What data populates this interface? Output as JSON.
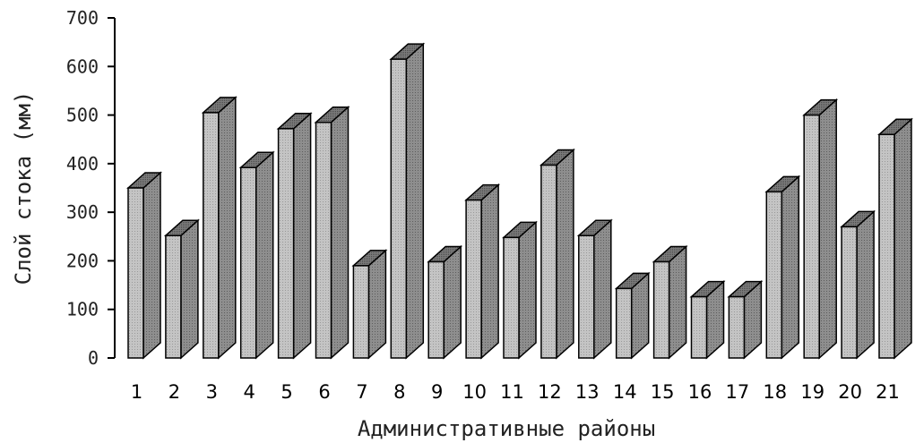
{
  "chart_data": {
    "type": "bar",
    "categories": [
      "1",
      "2",
      "3",
      "4",
      "5",
      "6",
      "7",
      "8",
      "9",
      "10",
      "11",
      "12",
      "13",
      "14",
      "15",
      "16",
      "17",
      "18",
      "19",
      "20",
      "21"
    ],
    "values": [
      350,
      252,
      505,
      392,
      472,
      485,
      190,
      615,
      198,
      325,
      248,
      397,
      252,
      143,
      198,
      126,
      126,
      342,
      500,
      270,
      460
    ],
    "title": "",
    "xlabel": "Административные районы",
    "ylabel": "Слой стока (мм)",
    "ylim": [
      0,
      700
    ],
    "yticks": [
      0,
      100,
      200,
      300,
      400,
      500,
      600,
      700
    ],
    "ytick_labels": [
      "0",
      "100",
      "200",
      "300",
      "400",
      "500",
      "600",
      "700"
    ],
    "grid": false,
    "legend": "none",
    "style": "3d-bar",
    "colors": {
      "front": "#b9b9b9",
      "side": "#8a8a8a",
      "top": "#6e6e6e",
      "outline": "#000000"
    }
  }
}
